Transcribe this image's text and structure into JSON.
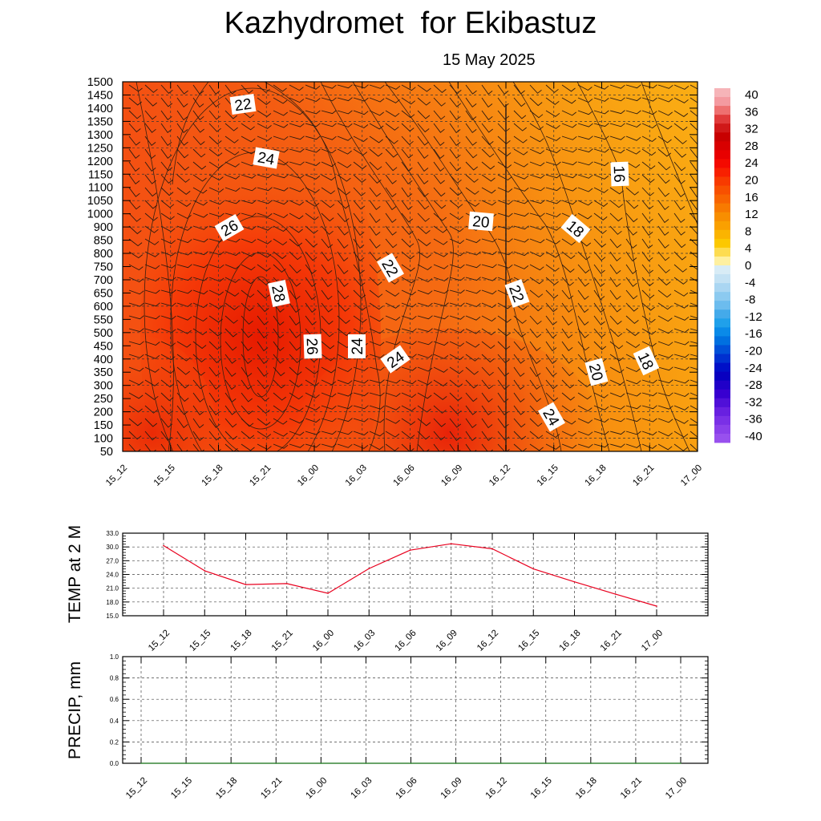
{
  "header": {
    "title": "Kazhydromet  for Ekibastuz",
    "date": "15 May 2025"
  },
  "chart_data": [
    {
      "type": "heatmap",
      "name": "vertical-section",
      "x_ticks": [
        "15_12",
        "15_15",
        "15_18",
        "15_21",
        "16_00",
        "16_03",
        "16_06",
        "16_09",
        "16_12",
        "16_15",
        "16_18",
        "16_21",
        "17_00"
      ],
      "y_ticks": [
        "1500",
        "1450",
        "1400",
        "1350",
        "1300",
        "1250",
        "1200",
        "1150",
        "1100",
        "1050",
        "1000",
        "900",
        "850",
        "800",
        "750",
        "700",
        "650",
        "600",
        "550",
        "500",
        "450",
        "400",
        "350",
        "300",
        "250",
        "200",
        "150",
        "100",
        "50"
      ],
      "colorbar": {
        "labels": [
          "40",
          "36",
          "32",
          "28",
          "24",
          "20",
          "16",
          "12",
          "8",
          "4",
          "0",
          "-4",
          "-8",
          "-12",
          "-16",
          "-20",
          "-24",
          "-28",
          "-32",
          "-36",
          "-40"
        ]
      },
      "contours": [
        {
          "label": "22",
          "level": 22
        },
        {
          "label": "24",
          "level": 24
        },
        {
          "label": "26",
          "level": 26
        },
        {
          "label": "28",
          "level": 28
        },
        {
          "label": "26",
          "level": 26
        },
        {
          "label": "24",
          "level": 24
        },
        {
          "label": "24",
          "level": 24
        },
        {
          "label": "22",
          "level": 22
        },
        {
          "label": "20",
          "level": 20
        },
        {
          "label": "22",
          "level": 22
        },
        {
          "label": "18",
          "level": 18
        },
        {
          "label": "16",
          "level": 16
        },
        {
          "label": "20",
          "level": 20
        },
        {
          "label": "18",
          "level": 18
        },
        {
          "label": "24",
          "level": 24
        }
      ],
      "grid": true
    },
    {
      "type": "line",
      "name": "temp-2m",
      "ylabel": "TEMP at 2 M",
      "categories": [
        "15_12",
        "15_15",
        "15_18",
        "15_21",
        "16_00",
        "16_03",
        "16_06",
        "16_09",
        "16_12",
        "16_15",
        "16_18",
        "16_21",
        "17_00"
      ],
      "y_ticks": [
        "33.0",
        "30.0",
        "27.0",
        "24.0",
        "21.0",
        "18.0",
        "15.0"
      ],
      "ylim": [
        15,
        33
      ],
      "series": [
        {
          "values": [
            30.3,
            24.8,
            21.8,
            22.0,
            19.9,
            25.3,
            29.3,
            30.7,
            29.6,
            25.2,
            22.4,
            19.7,
            17.1
          ],
          "color": "#e8001e"
        }
      ],
      "grid": true
    },
    {
      "type": "line",
      "name": "precip",
      "ylabel": "PRECIP, mm",
      "categories": [
        "15_12",
        "15_15",
        "15_18",
        "15_21",
        "16_00",
        "16_03",
        "16_06",
        "16_09",
        "16_12",
        "16_15",
        "16_18",
        "16_21",
        "17_00"
      ],
      "y_ticks": [
        "1.0",
        "0.8",
        "0.6",
        "0.4",
        "0.2",
        "0.0"
      ],
      "ylim": [
        0,
        1
      ],
      "series": [
        {
          "values": [
            0,
            0,
            0,
            0,
            0,
            0,
            0,
            0,
            0,
            0,
            0,
            0,
            0
          ],
          "color": "#2e8b2e"
        }
      ],
      "grid": true
    }
  ]
}
